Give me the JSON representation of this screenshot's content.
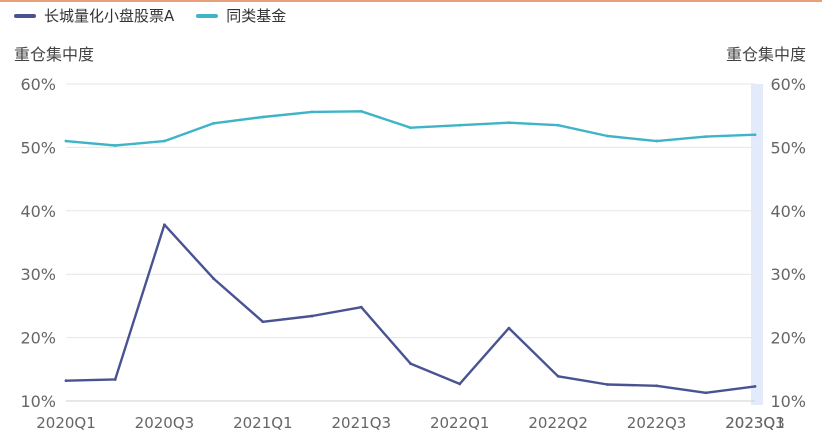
{
  "chart_data": {
    "type": "line",
    "legend_position": "top-left",
    "grid": true,
    "y_left_label": "重仓集中度",
    "y_right_label": "重仓集中度",
    "y_ticks": [
      "60%",
      "50%",
      "40%",
      "30%",
      "20%",
      "10%"
    ],
    "ylim": [
      10,
      60
    ],
    "x_tick_labels": [
      "2020Q1",
      "2020Q3",
      "2021Q1",
      "2021Q3",
      "2022Q1",
      "2022Q2",
      "2022Q3",
      "2023Q1",
      "2023Q3"
    ],
    "x_periods": [
      "2020Q1",
      "2020Q2",
      "2020Q3",
      "2020Q4",
      "2021Q1",
      "2021Q2",
      "2021Q3",
      "2021Q4",
      "2022Q1",
      "2022Q2",
      "2022Q3",
      "2022Q4",
      "2023Q1",
      "2023Q2",
      "2023Q3"
    ],
    "series": [
      {
        "name": "长城量化小盘股票A",
        "color": "#4a5391",
        "values": [
          13.2,
          13.4,
          37.8,
          29.3,
          22.5,
          23.4,
          24.8,
          15.9,
          12.7,
          21.5,
          13.9,
          12.6,
          12.4,
          11.3,
          12.3
        ]
      },
      {
        "name": "同类基金",
        "color": "#3fb4c7",
        "values": [
          51.0,
          50.3,
          51.0,
          53.8,
          54.8,
          55.6,
          55.7,
          53.1,
          53.5,
          53.9,
          53.5,
          51.8,
          51.0,
          51.7,
          52.0
        ]
      }
    ],
    "highlight_band_color": "#e3ebfb"
  }
}
